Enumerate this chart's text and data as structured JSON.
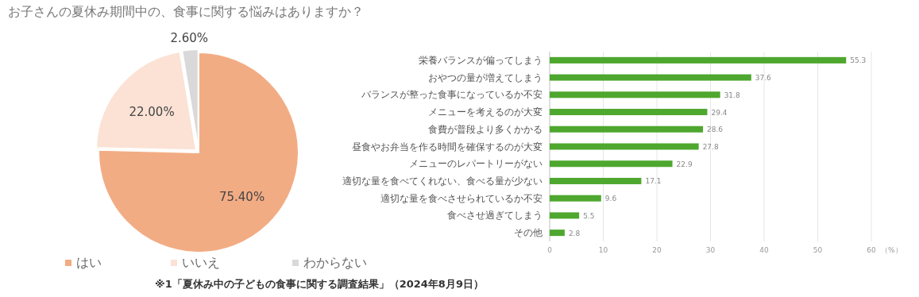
{
  "chart_data": [
    {
      "type": "pie",
      "title": "お子さんの夏休み期間中の、食事に関する悩みはありますか？",
      "categories": [
        "はい",
        "いいえ",
        "わからない"
      ],
      "values": [
        75.4,
        22.0,
        2.6
      ],
      "colors": [
        "#f2ac84",
        "#fbe2d5",
        "#d9d9d9"
      ],
      "value_labels": [
        "75.40%",
        "22.00%",
        "2.60%"
      ],
      "legend": "bottom"
    },
    {
      "type": "bar",
      "orientation": "horizontal",
      "categories": [
        "栄養バランスが偏ってしまう",
        "おやつの量が増えてしまう",
        "バランスが整った食事になっているか不安",
        "メニューを考えるのが大変",
        "食費が普段より多くかかる",
        "昼食やお弁当を作る時間を確保するのが大変",
        "メニューのレパートリーがない",
        "適切な量を食べてくれない、食べる量が少ない",
        "適切な量を食べさせられているか不安",
        "食べさせ過ぎてしまう",
        "その他"
      ],
      "values": [
        55.3,
        37.6,
        31.8,
        29.4,
        28.6,
        27.8,
        22.9,
        17.1,
        9.6,
        5.5,
        2.8
      ],
      "color": "#4ea72e",
      "data_labels": true,
      "xlim": [
        0,
        60
      ],
      "xticks": [
        0,
        10,
        20,
        30,
        40,
        50,
        60
      ],
      "xlabel": "（%）",
      "grid": "x",
      "annotations": [
        "※1「夏休み中の子どもの食事に関する調査結果」（2024年8月9日）"
      ]
    }
  ]
}
